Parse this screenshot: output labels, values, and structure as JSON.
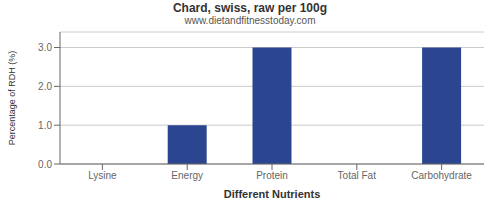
{
  "chart_data": {
    "type": "bar",
    "title": "Chard, swiss, raw per 100g",
    "subtitle": "www.dietandfitnesstoday.com",
    "xlabel": "Different Nutrients",
    "ylabel": "Percentage of RDH (%)",
    "categories": [
      "Lysine",
      "Energy",
      "Protein",
      "Total Fat",
      "Carbohydrate"
    ],
    "values": [
      0.0,
      1.0,
      3.0,
      0.0,
      3.0
    ],
    "color": "#2b4590",
    "ylim": [
      0.0,
      3.4
    ],
    "yticks": [
      {
        "value": 0.0,
        "label": "0.0"
      },
      {
        "value": 1.0,
        "label": "1.0"
      },
      {
        "value": 2.0,
        "label": "2.0"
      },
      {
        "value": 3.0,
        "label": "3.0"
      }
    ],
    "grid": true
  }
}
